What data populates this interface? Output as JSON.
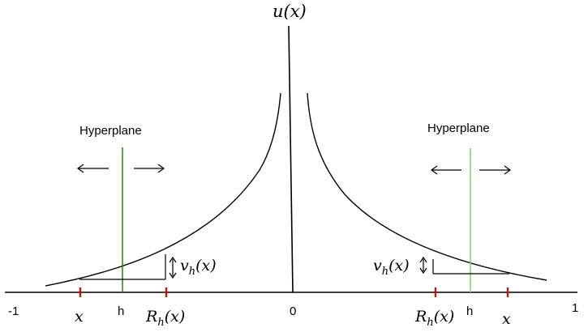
{
  "figure": {
    "y_axis_label": "u(x)",
    "x_axis": {
      "left_end_label": "-1",
      "origin_label": "0",
      "right_end_label": "1"
    },
    "left_panel": {
      "hyperplane_label": "Hyperplane",
      "h_label": "h",
      "x_label": "x",
      "reflection_label": "R_h(x)",
      "gap_label": "v_h(x)"
    },
    "right_panel": {
      "hyperplane_label": "Hyperplane",
      "h_label": "h",
      "x_label": "x",
      "reflection_label": "R_h(x)",
      "gap_label": "v_h(x)"
    },
    "colors": {
      "curve": "#000000",
      "left_hyperplane": "#2f7d1a",
      "right_hyperplane": "#7ed957",
      "tick_marks": "#cc1111",
      "axis": "#000000"
    }
  }
}
